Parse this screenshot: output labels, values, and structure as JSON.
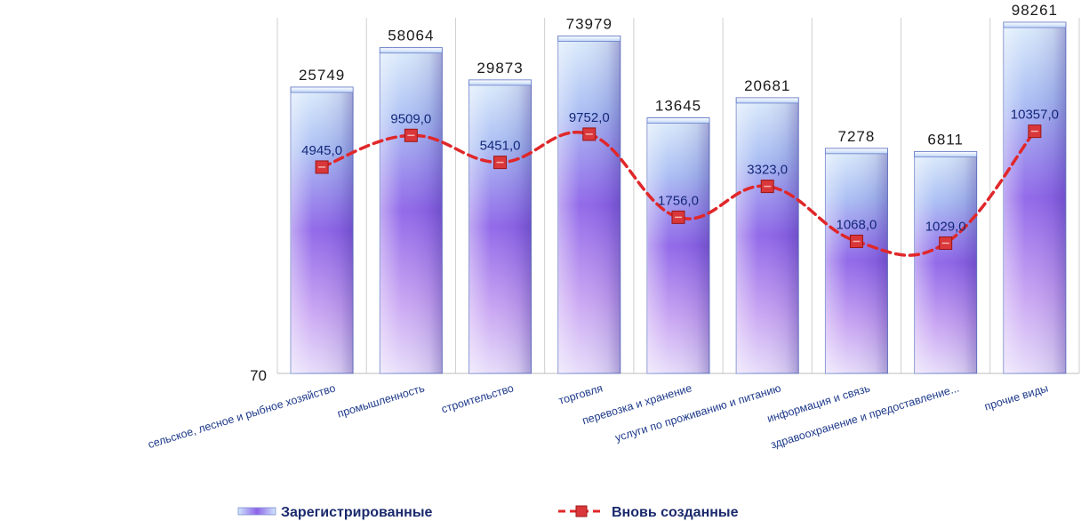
{
  "chart_data": {
    "type": "bar",
    "categories": [
      "сельское, лесное и рыбное хозяйство",
      "промышленность",
      "строительство",
      "торговля",
      "перевозка и хранение",
      "услуги по проживанию и питанию",
      "информация и связь",
      "здравоохранение и предоставление...",
      "прочие виды"
    ],
    "series": [
      {
        "name": "Зарегистрированные",
        "type": "bar",
        "values": [
          25749,
          58064,
          29873,
          73979,
          13645,
          20681,
          7278,
          6811,
          98261
        ],
        "labels": [
          "25749",
          "58064",
          "29873",
          "73979",
          "13645",
          "20681",
          "7278",
          "6811",
          "98261"
        ]
      },
      {
        "name": "Вновь созданные",
        "type": "line",
        "values": [
          4945.0,
          9509.0,
          5451.0,
          9752.0,
          1756.0,
          3323.0,
          1068.0,
          1029.0,
          10357.0
        ],
        "labels": [
          "4945,0",
          "9509,0",
          "5451,0",
          "9752,0",
          "1756,0",
          "3323,0",
          "1068,0",
          "1029,0",
          "10357,0"
        ]
      }
    ],
    "y_scale": "log",
    "ylim": [
      70,
      100000
    ],
    "y_tick_labels": [
      "70"
    ],
    "grid": "vertical",
    "legend_position": "bottom",
    "colors": {
      "bar_top": "#cfe6fb",
      "bar_mid": "#9c6be6",
      "bar_bottom": "#d7c8f7",
      "line": "#e0272a",
      "marker_fill": "#d9373a",
      "label_text": "#14287a"
    }
  }
}
